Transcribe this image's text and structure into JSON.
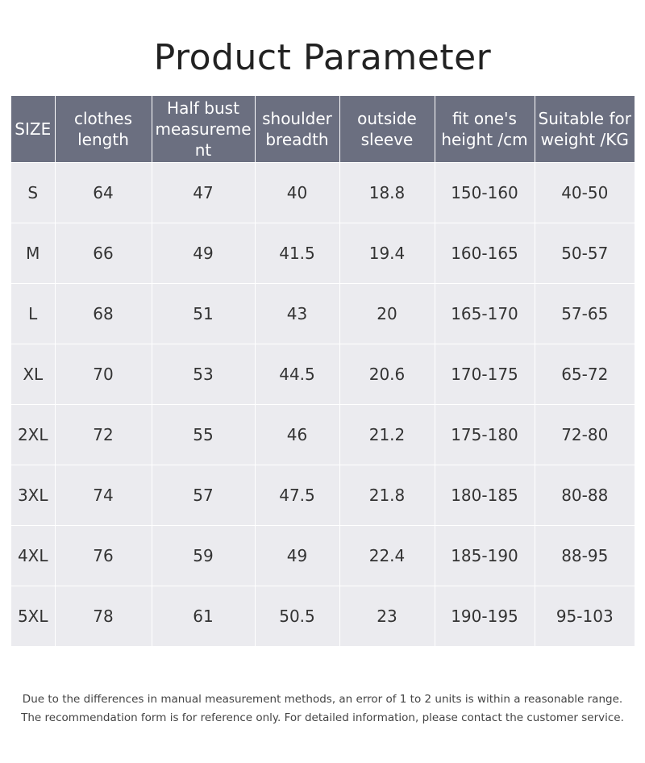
{
  "title": "Product Parameter",
  "table": {
    "headers": [
      "SIZE",
      "clothes length",
      "Half bust measurement",
      "shoulder breadth",
      "outside sleeve",
      "fit one's height /cm",
      "Suitable for weight /KG"
    ],
    "rows": [
      [
        "S",
        "64",
        "47",
        "40",
        "18.8",
        "150-160",
        "40-50"
      ],
      [
        "M",
        "66",
        "49",
        "41.5",
        "19.4",
        "160-165",
        "50-57"
      ],
      [
        "L",
        "68",
        "51",
        "43",
        "20",
        "165-170",
        "57-65"
      ],
      [
        "XL",
        "70",
        "53",
        "44.5",
        "20.6",
        "170-175",
        "65-72"
      ],
      [
        "2XL",
        "72",
        "55",
        "46",
        "21.2",
        "175-180",
        "72-80"
      ],
      [
        "3XL",
        "74",
        "57",
        "47.5",
        "21.8",
        "180-185",
        "80-88"
      ],
      [
        "4XL",
        "76",
        "59",
        "49",
        "22.4",
        "185-190",
        "88-95"
      ],
      [
        "5XL",
        "78",
        "61",
        "50.5",
        "23",
        "190-195",
        "95-103"
      ]
    ]
  },
  "notes": [
    "Due to the differences in manual measurement methods, an error of 1 to 2 units is within a reasonable range.",
    "The recommendation form is for reference only. For detailed information, please contact the customer service."
  ],
  "colors": {
    "header_bg": "#6b6f80",
    "cell_bg": "#ebebef"
  }
}
